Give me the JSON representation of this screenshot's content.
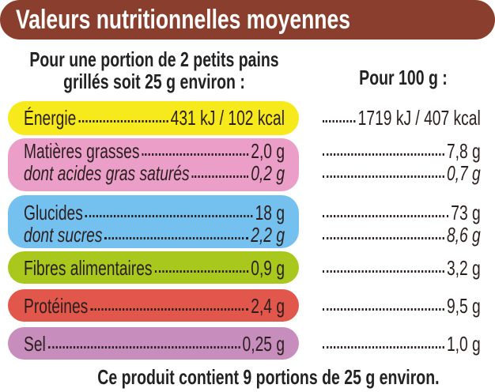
{
  "title": "Valeurs nutritionnelles moyennes",
  "header_portion_line1": "Pour une portion de 2 petits pains",
  "header_portion_line2": "grillés soit 25 g environ  :",
  "header_100g": "Pour 100 g :",
  "colors": {
    "header": "#8a3f2e",
    "energie": "#f7ea1c",
    "graisses": "#eb9ec8",
    "glucides": "#74c1ef",
    "fibres": "#a8c81e",
    "proteines": "#e2574b",
    "sel": "#c68dbd"
  },
  "rows": [
    {
      "label": "Énergie",
      "portion": "431 kJ / 102 kcal",
      "per100": "1719 kJ / 407 kcal"
    },
    {
      "label": "Matières grasses",
      "portion": "2,0 g",
      "per100": "7,8 g"
    },
    {
      "label": "dont acides gras saturés",
      "portion": "0,2 g",
      "per100": "0,7 g"
    },
    {
      "label": "Glucides",
      "portion": "18 g",
      "per100": "73 g"
    },
    {
      "label": "dont sucres",
      "portion": "2,2 g",
      "per100": "8,6 g"
    },
    {
      "label": "Fibres alimentaires",
      "portion": "0,9 g",
      "per100": "3,2 g"
    },
    {
      "label": "Protéines",
      "portion": "2,4 g",
      "per100": "9,5 g"
    },
    {
      "label": "Sel",
      "portion": "0,25 g",
      "per100": "1,0 g"
    }
  ],
  "footer": "Ce produit contient 9 portions de 25 g environ."
}
